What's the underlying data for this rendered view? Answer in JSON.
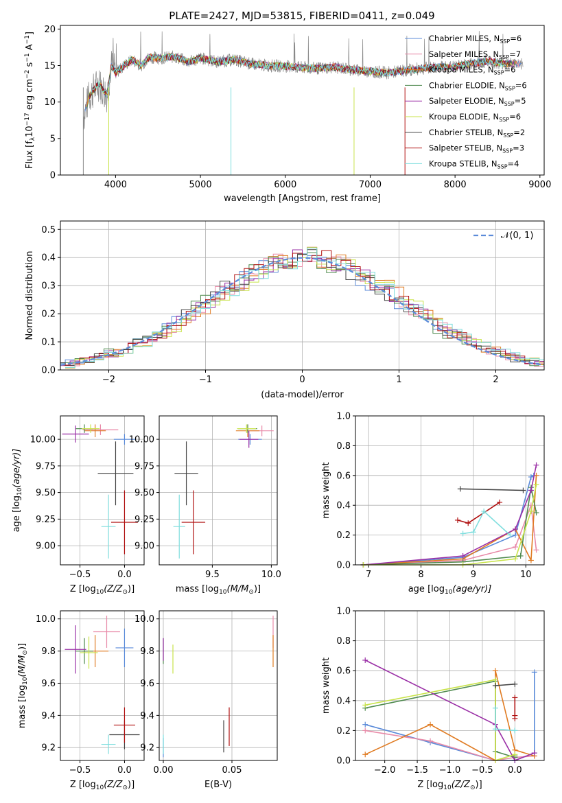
{
  "figure": {
    "title": "PLATE=2427, MJD=53815, FIBERID=0411, z=0.049"
  },
  "series_styles": [
    {
      "key": "chab_miles",
      "name": "Chabrier MILES, N",
      "nssp": "=6",
      "color": "#5b8bd9"
    },
    {
      "key": "salp_miles",
      "name": "Salpeter MILES, N",
      "nssp": "=7",
      "color": "#e88aa8"
    },
    {
      "key": "krou_miles",
      "name": "Kroupa MILES, N",
      "nssp": "=6",
      "color": "#e07b22"
    },
    {
      "key": "chab_elodie",
      "name": "Chabrier ELODIE, N",
      "nssp": "=6",
      "color": "#4f8a4f"
    },
    {
      "key": "salp_elodie",
      "name": "Salpeter ELODIE, N",
      "nssp": "=5",
      "color": "#9a2fa6"
    },
    {
      "key": "krou_elodie",
      "name": "Kroupa ELODIE, N",
      "nssp": "=6",
      "color": "#c8e34a"
    },
    {
      "key": "chab_stelib",
      "name": "Chabrier STELIB, N",
      "nssp": "=2",
      "color": "#444444"
    },
    {
      "key": "salp_stelib",
      "name": "Salpeter STELIB, N",
      "nssp": "=3",
      "color": "#b01010"
    },
    {
      "key": "krou_stelib",
      "name": "Kroupa STELIB, N",
      "nssp": "=4",
      "color": "#7fdede"
    }
  ],
  "chart_data": [
    {
      "type": "line",
      "xlabel": "wavelength [Angstrom, rest frame]",
      "ylabel": "Flux [f",
      "ylabel_unit": "10",
      "ylabel_rest": " erg cm",
      "ylabel_tail": " s",
      "ylabel_end": " A",
      "ylabel_close": "]",
      "ylabel_exp1": "−17",
      "ylabel_exp2": "−2",
      "ylabel_exp3": "−1",
      "ylabel_sub": "λ",
      "nssp_sub": "SSP",
      "xlim": [
        3350,
        9050
      ],
      "ylim": [
        0,
        20.5
      ],
      "xticks": [
        "4000",
        "5000",
        "6000",
        "7000",
        "8000",
        "9000"
      ],
      "xtick_values": [
        4000,
        5000,
        6000,
        7000,
        8000,
        9000
      ],
      "yticks": [
        "0",
        "5",
        "10",
        "15",
        "20"
      ],
      "ytick_values": [
        0,
        5,
        10,
        15,
        20
      ],
      "data_series": {
        "name": "Flux",
        "x": [
          3620,
          3700,
          3800,
          3900,
          3950,
          4000,
          4100,
          4200,
          4300,
          4400,
          4500,
          4700,
          4860,
          5000,
          5200,
          5400,
          5600,
          5800,
          6000,
          6200,
          6400,
          6563,
          6800,
          7000,
          7200,
          7400,
          7600,
          7800,
          8000,
          8200,
          8400,
          8600,
          8800
        ],
        "y": [
          8.0,
          11.0,
          12.5,
          11.0,
          15.0,
          14.0,
          15.0,
          15.8,
          15.0,
          16.2,
          16.0,
          16.2,
          15.5,
          16.0,
          15.5,
          15.8,
          15.2,
          15.0,
          14.9,
          14.7,
          14.6,
          14.8,
          14.4,
          14.2,
          14.0,
          14.3,
          14.6,
          14.8,
          14.8,
          15.3,
          15.6,
          15.2,
          15.3
        ]
      }
    },
    {
      "type": "bar",
      "xlabel": "(data-model)/error",
      "ylabel": "Normed distribution",
      "xlim": [
        -2.5,
        2.5
      ],
      "ylim": [
        0,
        0.53
      ],
      "xticks": [
        "−2",
        "−1",
        "0",
        "1",
        "2"
      ],
      "xtick_values": [
        -2,
        -1,
        0,
        1,
        2
      ],
      "yticks": [
        "0.0",
        "0.1",
        "0.2",
        "0.3",
        "0.4",
        "0.5"
      ],
      "ytick_values": [
        0,
        0.1,
        0.2,
        0.3,
        0.4,
        0.5
      ],
      "legend": "𝒩(0, 1)",
      "bin_width": 0.1,
      "bin_start": -2.5,
      "hist_values": [
        0.02,
        0.025,
        0.03,
        0.04,
        0.05,
        0.06,
        0.07,
        0.08,
        0.1,
        0.12,
        0.13,
        0.15,
        0.17,
        0.2,
        0.22,
        0.24,
        0.27,
        0.29,
        0.31,
        0.33,
        0.35,
        0.37,
        0.38,
        0.39,
        0.4,
        0.41,
        0.4,
        0.39,
        0.38,
        0.37,
        0.35,
        0.33,
        0.31,
        0.29,
        0.27,
        0.24,
        0.22,
        0.2,
        0.17,
        0.15,
        0.13,
        0.12,
        0.1,
        0.08,
        0.07,
        0.06,
        0.05,
        0.04,
        0.03,
        0.025
      ]
    },
    {
      "type": "scatter",
      "xlabel": "Z [log",
      "ylabel": "age  [log",
      "xlim": [
        -0.72,
        0.22
      ],
      "ylim": [
        8.82,
        10.22
      ],
      "xticks": [
        "−0.5",
        "0.0"
      ],
      "xtick_values": [
        -0.5,
        0.0
      ],
      "yticks": [
        "9.00",
        "9.25",
        "9.50",
        "9.75",
        "10.00"
      ],
      "ytick_values": [
        9.0,
        9.25,
        9.5,
        9.75,
        10.0
      ],
      "points": [
        {
          "s": "chab_miles",
          "x": 0.0,
          "y": 10.0,
          "xerr": 0.12,
          "yerr": 0.05
        },
        {
          "s": "salp_miles",
          "x": -0.27,
          "y": 10.09,
          "xerr": 0.2,
          "yerr": 0.05
        },
        {
          "s": "krou_miles",
          "x": -0.33,
          "y": 10.08,
          "xerr": 0.12,
          "yerr": 0.06
        },
        {
          "s": "chab_elodie",
          "x": -0.45,
          "y": 10.1,
          "xerr": 0.1,
          "yerr": 0.04
        },
        {
          "s": "salp_elodie",
          "x": -0.55,
          "y": 10.05,
          "xerr": 0.15,
          "yerr": 0.08
        },
        {
          "s": "krou_elodie",
          "x": -0.38,
          "y": 10.1,
          "xerr": 0.1,
          "yerr": 0.04
        },
        {
          "s": "chab_stelib",
          "x": -0.1,
          "y": 9.68,
          "xerr": 0.2,
          "yerr": 0.3
        },
        {
          "s": "salp_stelib",
          "x": 0.0,
          "y": 9.22,
          "xerr": 0.15,
          "yerr": 0.3
        },
        {
          "s": "krou_stelib",
          "x": -0.18,
          "y": 9.18,
          "xerr": 0.08,
          "yerr": 0.3
        }
      ]
    },
    {
      "type": "scatter",
      "xlabel": "mass [log",
      "xlim": [
        9.05,
        10.05
      ],
      "ylim": [
        8.82,
        10.22
      ],
      "xticks": [
        "9.5",
        "10.0"
      ],
      "xtick_values": [
        9.5,
        10.0
      ],
      "yticks": [
        "9.00",
        "9.25",
        "9.50",
        "9.75",
        "10.00"
      ],
      "ytick_values": [
        9.0,
        9.25,
        9.5,
        9.75,
        10.0
      ],
      "points": [
        {
          "s": "chab_miles",
          "x": 9.82,
          "y": 10.0,
          "xerr": 0.1,
          "yerr": 0.05
        },
        {
          "s": "salp_miles",
          "x": 9.92,
          "y": 10.08,
          "xerr": 0.1,
          "yerr": 0.05
        },
        {
          "s": "krou_miles",
          "x": 9.8,
          "y": 10.08,
          "xerr": 0.1,
          "yerr": 0.06
        },
        {
          "s": "chab_elodie",
          "x": 9.8,
          "y": 10.1,
          "xerr": 0.08,
          "yerr": 0.04
        },
        {
          "s": "salp_elodie",
          "x": 9.81,
          "y": 10.0,
          "xerr": 0.08,
          "yerr": 0.08
        },
        {
          "s": "krou_elodie",
          "x": 9.79,
          "y": 10.1,
          "xerr": 0.08,
          "yerr": 0.04
        },
        {
          "s": "chab_stelib",
          "x": 9.28,
          "y": 9.68,
          "xerr": 0.1,
          "yerr": 0.3
        },
        {
          "s": "salp_stelib",
          "x": 9.34,
          "y": 9.22,
          "xerr": 0.1,
          "yerr": 0.3
        },
        {
          "s": "krou_stelib",
          "x": 9.22,
          "y": 9.18,
          "xerr": 0.05,
          "yerr": 0.3
        }
      ]
    },
    {
      "type": "line",
      "xlabel": "age  [log",
      "ylabel": "mass weight",
      "xlim": [
        6.75,
        10.35
      ],
      "ylim": [
        0,
        1.0
      ],
      "xticks": [
        "7",
        "8",
        "9",
        "10"
      ],
      "xtick_values": [
        7,
        8,
        9,
        10
      ],
      "yticks": [
        "0.0",
        "0.2",
        "0.4",
        "0.6",
        "0.8",
        "1.0"
      ],
      "ytick_values": [
        0,
        0.2,
        0.4,
        0.6,
        0.8,
        1.0
      ],
      "lines": [
        {
          "s": "chab_miles",
          "x": [
            6.9,
            8.8,
            9.8,
            10.1,
            10.15
          ],
          "y": [
            0.0,
            0.05,
            0.2,
            0.59,
            0.6
          ]
        },
        {
          "s": "salp_miles",
          "x": [
            6.9,
            8.8,
            9.8,
            10.1,
            10.2
          ],
          "y": [
            0.0,
            0.03,
            0.12,
            0.4,
            0.1
          ]
        },
        {
          "s": "krou_miles",
          "x": [
            6.9,
            8.8,
            9.8,
            10.1,
            10.2
          ],
          "y": [
            0.0,
            0.04,
            0.24,
            0.03,
            0.6
          ]
        },
        {
          "s": "chab_elodie",
          "x": [
            6.9,
            8.8,
            9.9,
            10.1,
            10.2
          ],
          "y": [
            0.0,
            0.02,
            0.06,
            0.52,
            0.35
          ]
        },
        {
          "s": "salp_elodie",
          "x": [
            6.9,
            8.8,
            9.8,
            10.1,
            10.2
          ],
          "y": [
            0.0,
            0.06,
            0.24,
            0.5,
            0.67
          ]
        },
        {
          "s": "krou_elodie",
          "x": [
            6.9,
            8.8,
            9.8,
            10.1,
            10.2
          ],
          "y": [
            0.0,
            0.0,
            0.04,
            0.36,
            0.54
          ]
        },
        {
          "s": "chab_stelib",
          "x": [
            8.75,
            9.95
          ],
          "y": [
            0.51,
            0.5
          ]
        },
        {
          "s": "salp_stelib",
          "x": [
            8.7,
            8.9,
            9.5
          ],
          "y": [
            0.3,
            0.28,
            0.42
          ]
        },
        {
          "s": "krou_stelib",
          "x": [
            8.8,
            9.0,
            9.2,
            9.7
          ],
          "y": [
            0.21,
            0.22,
            0.36,
            0.2
          ]
        }
      ]
    },
    {
      "type": "scatter",
      "xlabel": "Z [log",
      "ylabel": "mass [log",
      "xlim": [
        -0.72,
        0.22
      ],
      "ylim": [
        9.12,
        10.05
      ],
      "xticks": [
        "−0.5",
        "0.0"
      ],
      "xtick_values": [
        -0.5,
        0.0
      ],
      "yticks": [
        "9.2",
        "9.4",
        "9.6",
        "9.8",
        "10.0"
      ],
      "ytick_values": [
        9.2,
        9.4,
        9.6,
        9.8,
        10.0
      ],
      "points": [
        {
          "s": "chab_miles",
          "x": 0.0,
          "y": 9.82,
          "xerr": 0.1,
          "yerr": 0.12
        },
        {
          "s": "salp_miles",
          "x": -0.2,
          "y": 9.92,
          "xerr": 0.15,
          "yerr": 0.1
        },
        {
          "s": "krou_miles",
          "x": -0.33,
          "y": 9.8,
          "xerr": 0.15,
          "yerr": 0.1
        },
        {
          "s": "chab_elodie",
          "x": -0.45,
          "y": 9.8,
          "xerr": 0.1,
          "yerr": 0.08
        },
        {
          "s": "salp_elodie",
          "x": -0.55,
          "y": 9.81,
          "xerr": 0.12,
          "yerr": 0.15
        },
        {
          "s": "krou_elodie",
          "x": -0.4,
          "y": 9.79,
          "xerr": 0.1,
          "yerr": 0.1
        },
        {
          "s": "chab_stelib",
          "x": 0.0,
          "y": 9.28,
          "xerr": 0.17,
          "yerr": 0.09
        },
        {
          "s": "salp_stelib",
          "x": 0.0,
          "y": 9.34,
          "xerr": 0.12,
          "yerr": 0.11
        },
        {
          "s": "krou_stelib",
          "x": -0.18,
          "y": 9.22,
          "xerr": 0.08,
          "yerr": 0.06
        }
      ]
    },
    {
      "type": "scatter",
      "xlabel": "E(B-V)",
      "xlim": [
        -0.003,
        0.083
      ],
      "ylim": [
        9.12,
        10.05
      ],
      "xticks": [
        "0.00",
        "0.05"
      ],
      "xtick_values": [
        0.0,
        0.05
      ],
      "yticks": [
        "9.2",
        "9.4",
        "9.6",
        "9.8",
        "10.0"
      ],
      "ytick_values": [
        9.2,
        9.4,
        9.6,
        9.8,
        10.0
      ],
      "points": [
        {
          "s": "chab_miles",
          "x": 0.0,
          "y": 9.2,
          "xerr": 0.0,
          "yerr": 0.06
        },
        {
          "s": "salp_miles",
          "x": 0.08,
          "y": 9.92,
          "xerr": 0.0,
          "yerr": 0.1
        },
        {
          "s": "krou_miles",
          "x": 0.08,
          "y": 9.8,
          "xerr": 0.0,
          "yerr": 0.1
        },
        {
          "s": "chab_elodie",
          "x": 0.0,
          "y": 9.8,
          "xerr": 0.0,
          "yerr": 0.08
        },
        {
          "s": "salp_elodie",
          "x": 0.0,
          "y": 9.81,
          "xerr": 0.0,
          "yerr": 0.07
        },
        {
          "s": "krou_elodie",
          "x": 0.007,
          "y": 9.75,
          "xerr": 0.0,
          "yerr": 0.09
        },
        {
          "s": "chab_stelib",
          "x": 0.044,
          "y": 9.27,
          "xerr": 0.0,
          "yerr": 0.1
        },
        {
          "s": "salp_stelib",
          "x": 0.048,
          "y": 9.33,
          "xerr": 0.0,
          "yerr": 0.12
        },
        {
          "s": "krou_stelib",
          "x": 0.0,
          "y": 9.22,
          "xerr": 0.0,
          "yerr": 0.06
        }
      ]
    },
    {
      "type": "line",
      "xlabel": "Z [log",
      "ylabel": "mass weight",
      "xlim": [
        -2.45,
        0.45
      ],
      "ylim": [
        0,
        1.0
      ],
      "xticks": [
        "−2.0",
        "−1.5",
        "−1.0",
        "−0.5",
        "0.0"
      ],
      "xtick_values": [
        -2.0,
        -1.5,
        -1.0,
        -0.5,
        0.0
      ],
      "yticks": [
        "0.0",
        "0.2",
        "0.4",
        "0.6",
        "0.8",
        "1.0"
      ],
      "ytick_values": [
        0,
        0.2,
        0.4,
        0.6,
        0.8,
        1.0
      ],
      "lines": [
        {
          "s": "chab_miles",
          "x": [
            -2.3,
            -1.3,
            -0.3,
            0.0,
            0.3,
            0.3
          ],
          "y": [
            0.24,
            0.12,
            0.0,
            0.0,
            0.05,
            0.59
          ]
        },
        {
          "s": "salp_miles",
          "x": [
            -2.3,
            -1.3,
            -0.3,
            0.0,
            0.3
          ],
          "y": [
            0.2,
            0.13,
            0.0,
            0.02,
            0.03
          ]
        },
        {
          "s": "krou_miles",
          "x": [
            -2.3,
            -1.3,
            -0.3,
            -0.3,
            0.0,
            0.3
          ],
          "y": [
            0.04,
            0.24,
            0.0,
            0.6,
            0.07,
            0.03
          ]
        },
        {
          "s": "chab_elodie",
          "x": [
            -2.3,
            -0.3,
            -0.3,
            0.0,
            0.0
          ],
          "y": [
            0.35,
            0.53,
            0.06,
            0.02,
            0.03
          ]
        },
        {
          "s": "salp_elodie",
          "x": [
            -2.3,
            -0.3,
            0.0,
            0.3
          ],
          "y": [
            0.67,
            0.24,
            0.0,
            0.05
          ]
        },
        {
          "s": "krou_elodie",
          "x": [
            -2.3,
            -0.3,
            -0.3,
            0.0
          ],
          "y": [
            0.37,
            0.54,
            0.0,
            0.04
          ]
        },
        {
          "s": "chab_stelib",
          "x": [
            -0.3,
            0.0
          ],
          "y": [
            0.5,
            0.51
          ]
        },
        {
          "s": "salp_stelib",
          "x": [
            0.0,
            0.0,
            0.0
          ],
          "y": [
            0.42,
            0.28,
            0.3
          ]
        },
        {
          "s": "krou_stelib",
          "x": [
            -0.3,
            -0.3,
            0.0,
            0.0
          ],
          "y": [
            0.35,
            0.21,
            0.2,
            0.2
          ]
        }
      ]
    }
  ],
  "math": {
    "zsun": "10",
    "zsun_paren": "(Z/Z",
    "sun": "⊙",
    "close": ")]",
    "age_unit": "(age/yr)]",
    "mass_paren": "(M/M"
  }
}
